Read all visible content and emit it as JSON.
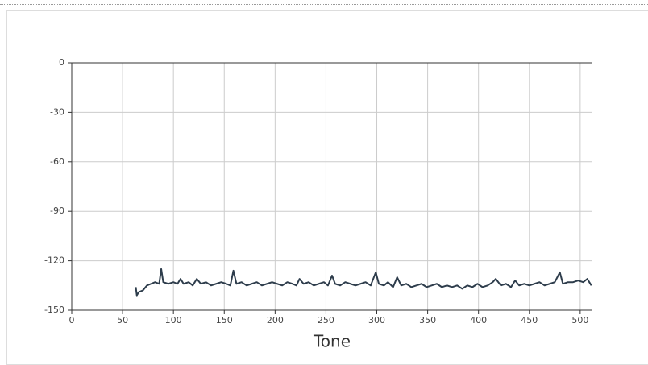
{
  "chart_data": {
    "type": "line",
    "x_label": "Tone",
    "xlim": [
      0,
      512
    ],
    "ylim": [
      -150,
      0
    ],
    "xticks": [
      0,
      50,
      100,
      150,
      200,
      250,
      300,
      350,
      400,
      450,
      500
    ],
    "yticks": [
      0,
      -30,
      -60,
      -90,
      -120,
      -150
    ],
    "grid": true,
    "color": "#2e3d4c",
    "x": [
      63,
      64,
      66,
      70,
      74,
      78,
      82,
      86,
      88,
      90,
      95,
      100,
      104,
      107,
      110,
      115,
      119,
      123,
      127,
      132,
      137,
      142,
      147,
      152,
      156,
      159,
      162,
      167,
      172,
      177,
      182,
      187,
      192,
      197,
      202,
      207,
      212,
      217,
      221,
      224,
      228,
      233,
      238,
      243,
      248,
      252,
      256,
      259,
      264,
      269,
      274,
      279,
      284,
      289,
      294,
      299,
      302,
      307,
      311,
      316,
      320,
      324,
      329,
      334,
      339,
      344,
      349,
      354,
      359,
      364,
      369,
      374,
      379,
      384,
      389,
      394,
      399,
      404,
      409,
      414,
      417,
      422,
      427,
      432,
      436,
      440,
      445,
      450,
      455,
      460,
      465,
      470,
      475,
      480,
      483,
      488,
      493,
      498,
      503,
      507,
      511
    ],
    "values": [
      -136,
      -141,
      -139,
      -138,
      -135,
      -134,
      -133,
      -134,
      -125,
      -133,
      -134,
      -133,
      -134,
      -131,
      -134,
      -133,
      -135,
      -131,
      -134,
      -133,
      -135,
      -134,
      -133,
      -134,
      -135,
      -126,
      -134,
      -133,
      -135,
      -134,
      -133,
      -135,
      -134,
      -133,
      -134,
      -135,
      -133,
      -134,
      -135,
      -131,
      -134,
      -133,
      -135,
      -134,
      -133,
      -135,
      -129,
      -134,
      -135,
      -133,
      -134,
      -135,
      -134,
      -133,
      -135,
      -127,
      -134,
      -135,
      -133,
      -136,
      -130,
      -135,
      -134,
      -136,
      -135,
      -134,
      -136,
      -135,
      -134,
      -136,
      -135,
      -136,
      -135,
      -137,
      -135,
      -136,
      -134,
      -136,
      -135,
      -133,
      -131,
      -135,
      -134,
      -136,
      -132,
      -135,
      -134,
      -135,
      -134,
      -133,
      -135,
      -134,
      -133,
      -127,
      -134,
      -133,
      -133,
      -132,
      -133,
      -131,
      -135
    ]
  }
}
